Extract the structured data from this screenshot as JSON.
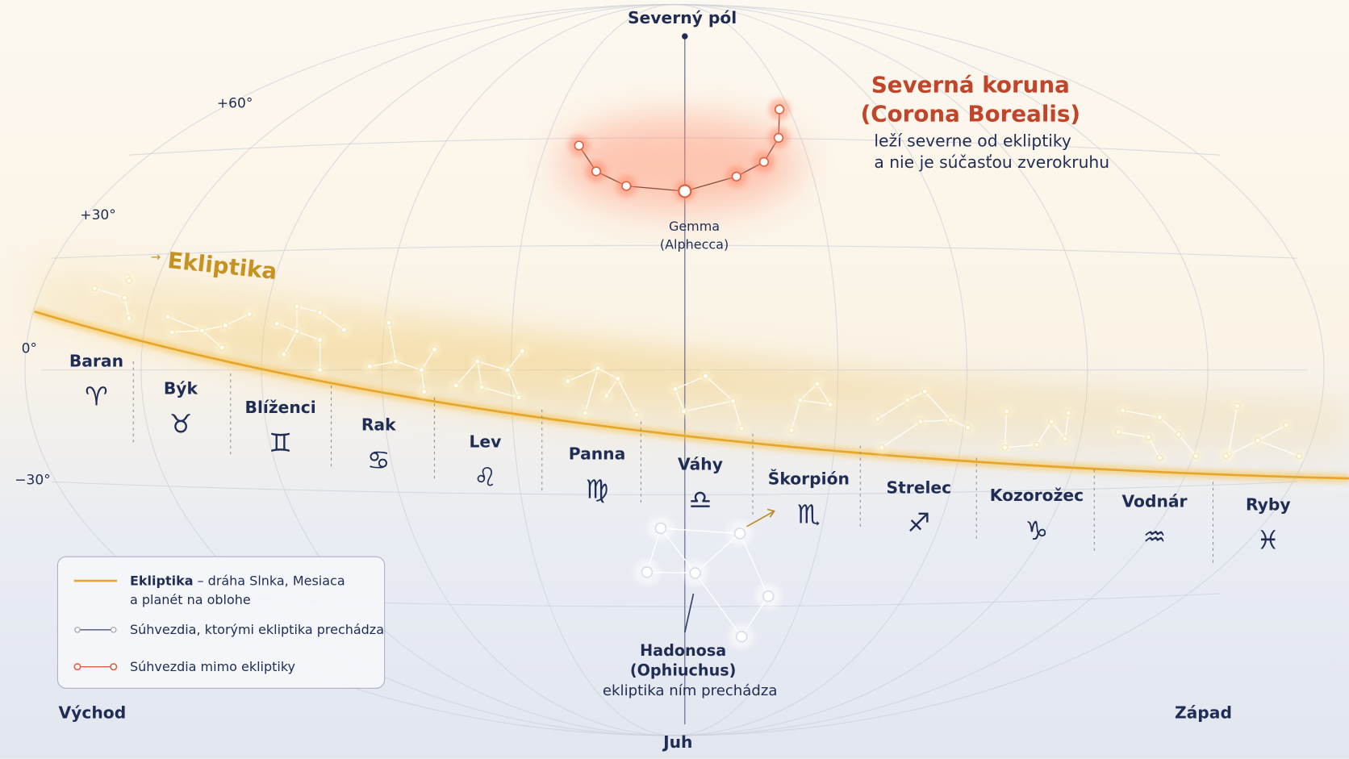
{
  "poles": {
    "north": "Severný pól",
    "south": "Juh"
  },
  "directions": {
    "east": "Východ",
    "west": "Západ"
  },
  "declinations": [
    "+60°",
    "+30°",
    "0°",
    "−30°"
  ],
  "ecliptic_label": "Ekliptika",
  "zodiac": [
    {
      "name": "Baran",
      "symbol": "♈"
    },
    {
      "name": "Býk",
      "symbol": "♉"
    },
    {
      "name": "Blíženci",
      "symbol": "♊"
    },
    {
      "name": "Rak",
      "symbol": "♋"
    },
    {
      "name": "Lev",
      "symbol": "♌"
    },
    {
      "name": "Panna",
      "symbol": "♍"
    },
    {
      "name": "Váhy",
      "symbol": "♎"
    },
    {
      "name": "Škorpión",
      "symbol": "♏"
    },
    {
      "name": "Strelec",
      "symbol": "♐"
    },
    {
      "name": "Kozorožec",
      "symbol": "♑"
    },
    {
      "name": "Vodnár",
      "symbol": "♒"
    },
    {
      "name": "Ryby",
      "symbol": "♓"
    }
  ],
  "corona_borealis": {
    "title": [
      "Severná koruna",
      "(Corona Borealis)"
    ],
    "description": [
      "leží severne od ekliptiky",
      "a nie je súčasťou zverokruhu"
    ],
    "star_label": [
      "Gemma",
      "(Alphecca)"
    ]
  },
  "ophiuchus": {
    "name": [
      "Hadonosa",
      "(Ophiuchus)"
    ],
    "note": "ekliptika ním prechádza"
  },
  "legend": [
    {
      "term": "Ekliptika",
      "lines": [
        "– dráha Slnka, Mesiaca",
        "a planét na oblohe"
      ]
    },
    {
      "lines": [
        "Súhvezdia, ktorými ekliptika prechádza"
      ]
    },
    {
      "lines": [
        "Súhvezdia mimo ekliptiky"
      ]
    }
  ]
}
